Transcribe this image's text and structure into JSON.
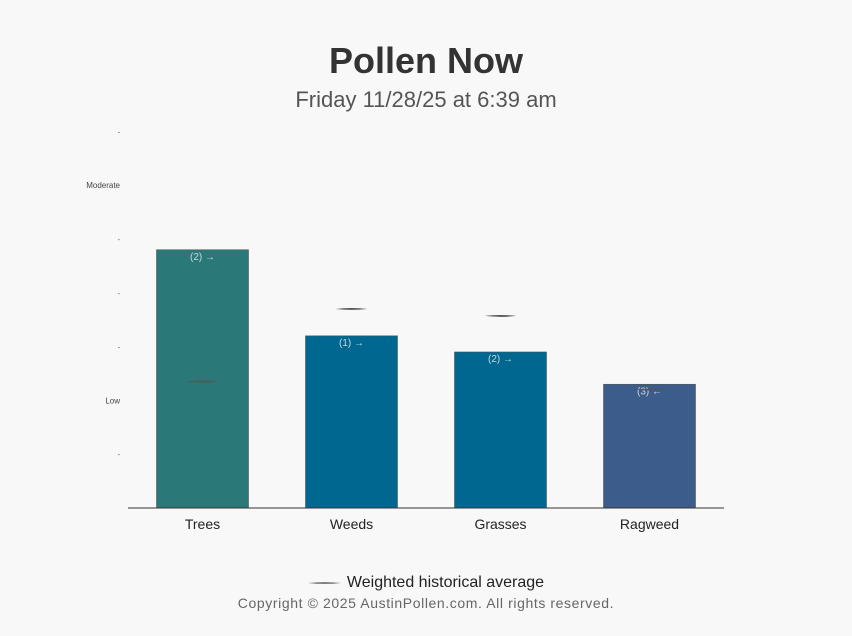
{
  "page": {
    "title": "Pollen Now",
    "subtitle": "Friday 11/28/25 at 6:39 am",
    "copyright": "Copyright © 2025 AustinPollen.com.  All rights reserved."
  },
  "legend": {
    "historical_label": "Weighted historical average"
  },
  "colors": {
    "trees": "#2a7878",
    "weeds_grasses": "#006890",
    "ragweed": "#3c5c8c",
    "marker": "#555555",
    "bar_label": "#c8d8e0"
  },
  "chart_data": {
    "type": "bar",
    "title": "Pollen Now",
    "subtitle": "Friday 11/28/25 at 6:39 am",
    "categories": [
      "Trees",
      "Weeds",
      "Grasses",
      "Ragweed"
    ],
    "values": [
      4.8,
      3.2,
      2.9,
      2.3
    ],
    "value_labels": [
      "(2) →",
      "(1) →",
      "(2) →",
      "(3) ←"
    ],
    "historical_average": [
      2.35,
      3.7,
      3.57,
      2.2
    ],
    "ylim": [
      0,
      7
    ],
    "yticks": [
      {
        "value": 1,
        "label": "-"
      },
      {
        "value": 2,
        "label": "Low"
      },
      {
        "value": 3,
        "label": "-"
      },
      {
        "value": 4,
        "label": "-"
      },
      {
        "value": 5,
        "label": "-"
      },
      {
        "value": 6,
        "label": "Moderate"
      },
      {
        "value": 7,
        "label": "-"
      }
    ],
    "xlabel": "",
    "ylabel": "",
    "grid": false,
    "legend_position": "bottom"
  }
}
